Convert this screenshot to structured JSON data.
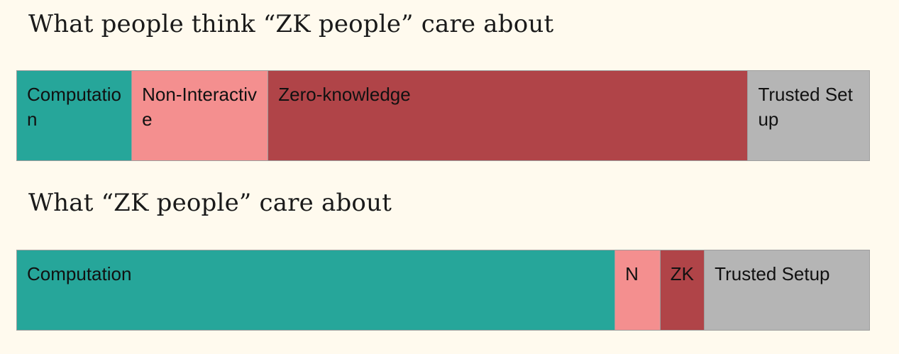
{
  "colors": {
    "background": "#fffaee",
    "computation": "#26a69a",
    "non_interactive": "#f48f8f",
    "zero_knowledge": "#b04448",
    "trusted_setup": "#b5b5b5"
  },
  "diagram1": {
    "heading": "What people think “ZK people” care about",
    "segments": [
      {
        "label": "Computation",
        "share": 0.135,
        "color": "#26a69a"
      },
      {
        "label": "Non-Interactive",
        "share": 0.16,
        "color": "#f48f8f"
      },
      {
        "label": "Zero-knowledge",
        "share": 0.563,
        "color": "#b04448"
      },
      {
        "label": "Trusted Setup",
        "share": 0.142,
        "color": "#b5b5b5"
      }
    ]
  },
  "diagram2": {
    "heading": "What “ZK people” care about",
    "segments": [
      {
        "label": "Computation",
        "share": 0.702,
        "color": "#26a69a"
      },
      {
        "label": "N",
        "share": 0.053,
        "color": "#f48f8f"
      },
      {
        "label": "ZK",
        "share": 0.052,
        "color": "#b04448"
      },
      {
        "label": "Trusted Setup",
        "share": 0.193,
        "color": "#b5b5b5"
      }
    ]
  }
}
